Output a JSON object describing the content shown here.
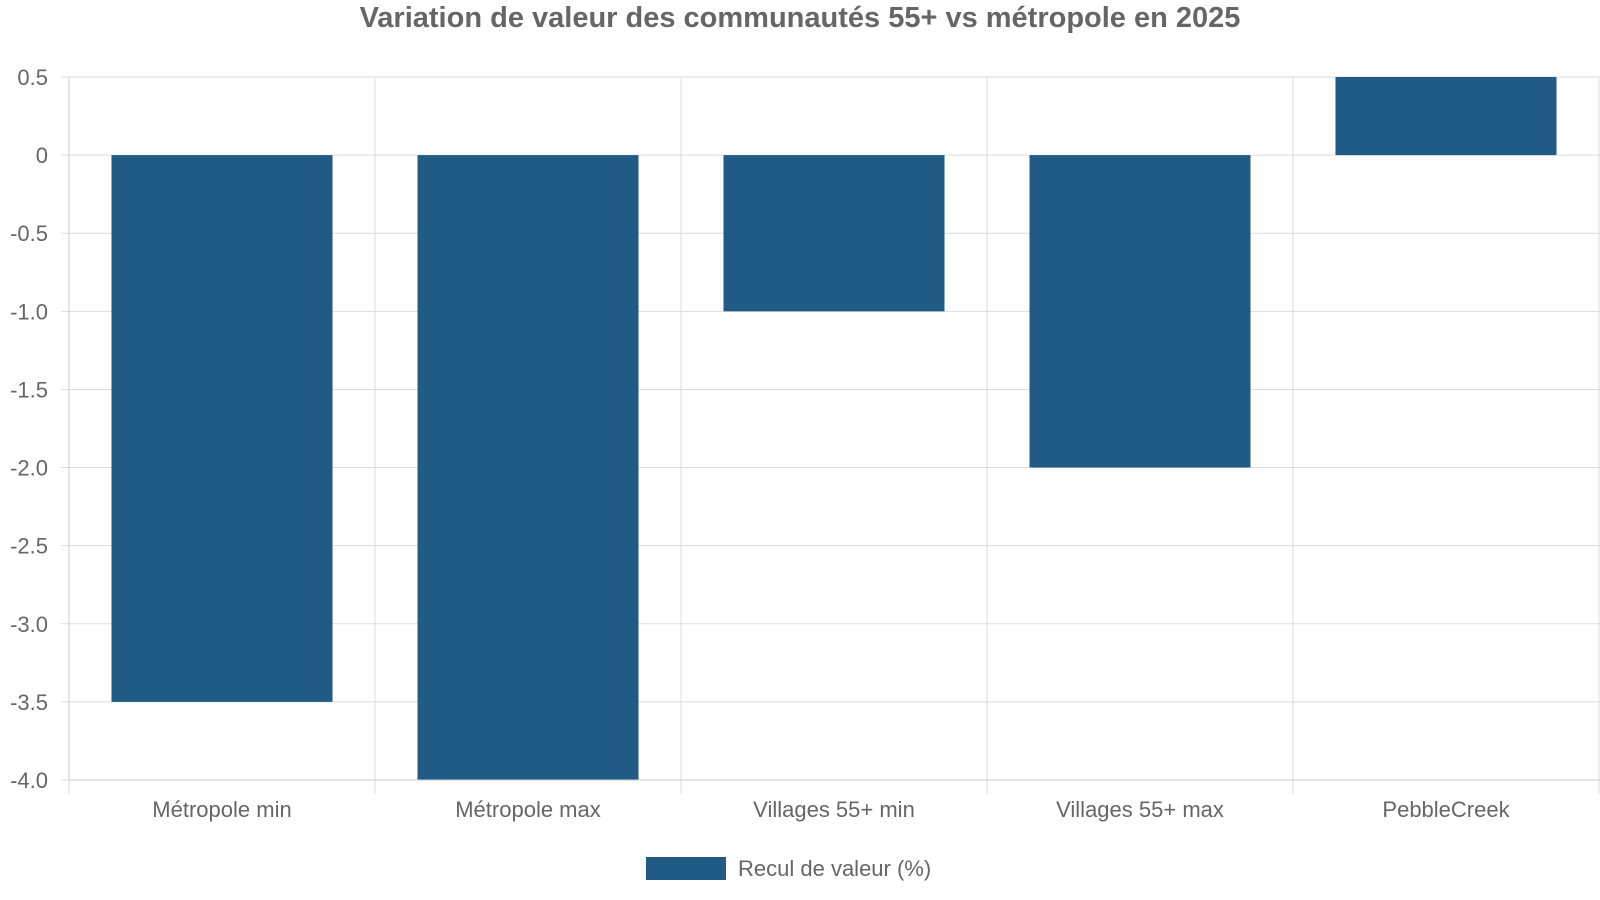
{
  "chart_data": {
    "type": "bar",
    "title": "Variation de valeur des communautés 55+ vs métropole en 2025",
    "categories": [
      "Métropole min",
      "Métropole max",
      "Villages 55+ min",
      "Villages 55+ max",
      "PebbleCreek"
    ],
    "series": [
      {
        "name": "Recul de valeur (%)",
        "values": [
          -3.5,
          -4.0,
          -1.0,
          -2.0,
          0.5
        ],
        "color": "#1f5b85"
      }
    ],
    "ylim": [
      -4.0,
      0.5
    ],
    "yticks": [
      "0.5",
      "0",
      "-0.5",
      "-1.0",
      "-1.5",
      "-2.0",
      "-2.5",
      "-3.0",
      "-3.5",
      "-4.0"
    ],
    "ytick_values": [
      0.5,
      0,
      -0.5,
      -1.0,
      -1.5,
      -2.0,
      -2.5,
      -3.0,
      -3.5,
      -4.0
    ],
    "grid": true,
    "legend_position": "bottom-center",
    "xlabel": "",
    "ylabel": ""
  }
}
